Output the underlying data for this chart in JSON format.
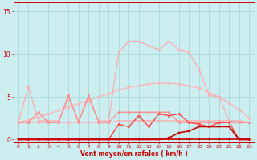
{
  "xlabel": "Vent moyen/en rafales ( km/h )",
  "x_ticks": [
    0,
    1,
    2,
    3,
    4,
    5,
    6,
    7,
    8,
    9,
    10,
    11,
    12,
    13,
    14,
    15,
    16,
    17,
    18,
    19,
    20,
    21,
    22,
    23
  ],
  "ylim": [
    -0.3,
    16
  ],
  "yticks": [
    0,
    5,
    10,
    15
  ],
  "background_color": "#cceef0",
  "grid_color": "#aadddd",
  "line_smooth": {
    "y": [
      2.0,
      2.3,
      2.6,
      3.0,
      3.4,
      3.8,
      4.2,
      4.6,
      5.0,
      5.4,
      5.8,
      6.1,
      6.3,
      6.5,
      6.6,
      6.6,
      6.5,
      6.3,
      6.0,
      5.5,
      5.0,
      4.3,
      3.5,
      2.5
    ],
    "color": "#ffb0b0",
    "lw": 0.9,
    "marker": "o",
    "ms": 1.8
  },
  "line_peak": {
    "y": [
      2.0,
      6.2,
      2.2,
      2.2,
      2.2,
      4.8,
      2.2,
      4.8,
      2.2,
      2.2,
      10.2,
      11.5,
      11.5,
      11.0,
      10.5,
      11.5,
      10.5,
      10.2,
      8.2,
      5.2,
      5.0,
      2.2,
      2.0,
      2.0
    ],
    "color": "#ffaaaa",
    "lw": 0.9,
    "marker": "o",
    "ms": 1.8
  },
  "line_mid": {
    "y": [
      2.0,
      2.0,
      2.0,
      2.0,
      2.0,
      2.0,
      2.0,
      2.0,
      2.0,
      2.0,
      2.2,
      2.2,
      2.2,
      2.2,
      2.2,
      2.2,
      2.2,
      2.2,
      2.2,
      2.2,
      2.2,
      2.2,
      2.2,
      2.0
    ],
    "color": "#ffaaaa",
    "lw": 0.9,
    "marker": "o",
    "ms": 1.8
  },
  "line_zigzag": {
    "y": [
      2.0,
      2.0,
      3.2,
      2.0,
      2.0,
      5.2,
      2.0,
      5.2,
      2.0,
      2.0,
      3.2,
      3.2,
      3.2,
      3.2,
      3.2,
      3.2,
      2.0,
      2.0,
      2.0,
      2.0,
      2.0,
      2.0,
      2.0,
      2.0
    ],
    "color": "#ff8888",
    "lw": 0.9,
    "marker": "o",
    "ms": 1.8
  },
  "line_med_red": {
    "y": [
      0.0,
      0.0,
      0.0,
      0.0,
      0.0,
      0.0,
      0.0,
      0.0,
      0.0,
      0.0,
      1.8,
      1.5,
      2.8,
      1.5,
      3.0,
      2.8,
      3.0,
      2.0,
      1.8,
      1.5,
      2.0,
      2.0,
      0.0,
      0.0
    ],
    "color": "#ff4444",
    "lw": 1.0,
    "marker": "o",
    "ms": 1.8
  },
  "line_dark_red": {
    "y": [
      0.0,
      0.0,
      0.0,
      0.0,
      0.0,
      0.0,
      0.0,
      0.0,
      0.0,
      0.0,
      0.0,
      0.0,
      0.0,
      0.0,
      0.0,
      0.2,
      0.8,
      1.0,
      1.5,
      1.5,
      1.5,
      1.5,
      0.0,
      0.0
    ],
    "color": "#cc0000",
    "lw": 1.2,
    "marker": "s",
    "ms": 2.0
  },
  "line_zero": {
    "y": [
      0.0,
      0.0,
      0.0,
      0.0,
      0.0,
      0.0,
      0.0,
      0.0,
      0.0,
      0.0,
      0.0,
      0.0,
      0.0,
      0.0,
      0.0,
      0.0,
      0.0,
      0.0,
      0.0,
      0.0,
      0.0,
      0.0,
      0.0,
      0.0
    ],
    "color": "#cc0000",
    "lw": 1.2,
    "marker": "s",
    "ms": 2.0
  }
}
